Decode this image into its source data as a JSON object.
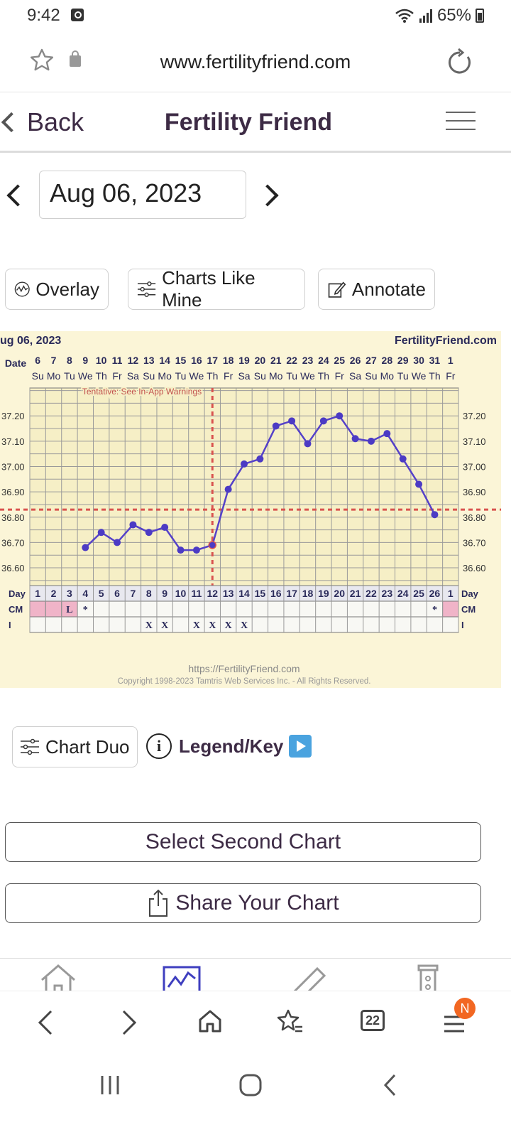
{
  "status": {
    "time": "9:42",
    "battery": "65%"
  },
  "browser": {
    "url": "www.fertilityfriend.com",
    "tab_count": "22",
    "menu_badge": "N"
  },
  "header": {
    "back_label": "Back",
    "title": "Fertility Friend"
  },
  "date_nav": {
    "date": "Aug 06, 2023"
  },
  "tools": {
    "overlay": "Overlay",
    "charts_like_mine": "Charts Like Mine",
    "annotate": "Annotate"
  },
  "bottom_actions": {
    "chart_duo": "Chart Duo",
    "legend_key": "Legend/Key",
    "select_second_chart": "Select Second Chart",
    "share_chart": "Share Your Chart"
  },
  "chart_data": {
    "type": "line",
    "title": "ug 06, 2023",
    "brand": "FertilityFriend.com",
    "warning": "Tentative: See In-App Warnings",
    "footer_url": "https://FertilityFriend.com",
    "copyright": "Copyright 1998-2023 Tamtris Web Services Inc. - All Rights Reserved.",
    "date_label": "Date",
    "dates": [
      "6",
      "7",
      "8",
      "9",
      "10",
      "11",
      "12",
      "13",
      "14",
      "15",
      "16",
      "17",
      "18",
      "19",
      "20",
      "21",
      "22",
      "23",
      "24",
      "25",
      "26",
      "27",
      "28",
      "29",
      "30",
      "31",
      "1"
    ],
    "weekdays": [
      "Su",
      "Mo",
      "Tu",
      "We",
      "Th",
      "Fr",
      "Sa",
      "Su",
      "Mo",
      "Tu",
      "We",
      "Th",
      "Fr",
      "Sa",
      "Su",
      "Mo",
      "Tu",
      "We",
      "Th",
      "Fr",
      "Sa",
      "Su",
      "Mo",
      "Tu",
      "We",
      "Th",
      "Fr"
    ],
    "cycle_days": [
      "1",
      "2",
      "3",
      "4",
      "5",
      "6",
      "7",
      "8",
      "9",
      "10",
      "11",
      "12",
      "13",
      "14",
      "15",
      "16",
      "17",
      "18",
      "19",
      "20",
      "21",
      "22",
      "23",
      "24",
      "25",
      "26",
      "1"
    ],
    "temperatures": [
      null,
      null,
      null,
      36.68,
      36.74,
      36.7,
      36.77,
      36.74,
      36.76,
      36.67,
      36.67,
      36.69,
      36.91,
      37.01,
      37.03,
      37.16,
      37.18,
      37.09,
      37.18,
      37.2,
      37.11,
      37.1,
      37.13,
      37.03,
      36.93,
      36.81,
      null
    ],
    "y_ticks": [
      "37.20",
      "37.10",
      "37.00",
      "36.90",
      "36.80",
      "36.70",
      "36.60"
    ],
    "ylim": [
      36.53,
      37.31
    ],
    "coverline": 36.83,
    "ovulation_day": "12",
    "row_labels": {
      "day": "Day",
      "cm": "CM",
      "i": "I"
    },
    "cm_marks": [
      "",
      "",
      "L",
      "*",
      "",
      "",
      "",
      "",
      "",
      "",
      "",
      "",
      "",
      "",
      "",
      "",
      "",
      "",
      "",
      "",
      "",
      "",
      "",
      "",
      "",
      "*",
      ""
    ],
    "i_marks": [
      "",
      "",
      "",
      "",
      "",
      "",
      "",
      "X",
      "X",
      "",
      "X",
      "X",
      "X",
      "X",
      "",
      "",
      "",
      "",
      "",
      "",
      "",
      "",
      "",
      "",
      "",
      "",
      ""
    ],
    "period_days": [
      "1",
      "2",
      "3",
      "1"
    ]
  }
}
